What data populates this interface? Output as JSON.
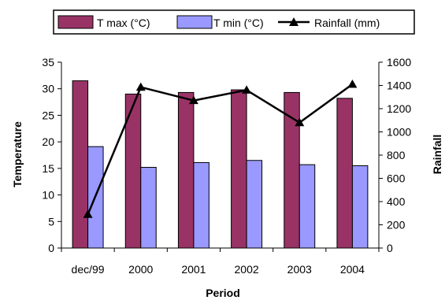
{
  "chart_data": {
    "type": "bar",
    "categories": [
      "dec/99",
      "2000",
      "2001",
      "2002",
      "2003",
      "2004"
    ],
    "series": [
      {
        "name": "T max (°C)",
        "type": "bar",
        "axis": "left",
        "color": "#993366",
        "values": [
          31.5,
          29,
          29.3,
          29.8,
          29.3,
          28.2
        ]
      },
      {
        "name": "T min (°C)",
        "type": "bar",
        "axis": "left",
        "color": "#9999ff",
        "values": [
          19.1,
          15.2,
          16.1,
          16.5,
          15.7,
          15.5
        ]
      },
      {
        "name": "Rainfall (mm)",
        "type": "line",
        "axis": "right",
        "color": "#000000",
        "marker": "triangle",
        "values": [
          290,
          1385,
          1270,
          1360,
          1080,
          1410
        ]
      }
    ],
    "xlabel": "Period",
    "ylabel": "Temperature",
    "y2label": "Rainfall",
    "ylim": [
      0,
      35
    ],
    "y2lim": [
      0,
      1600
    ],
    "yticks": [
      "0",
      "5",
      "10",
      "15",
      "20",
      "25",
      "30",
      "35"
    ],
    "y2ticks": [
      "0",
      "200",
      "400",
      "600",
      "800",
      "1000",
      "1200",
      "1400",
      "1600"
    ],
    "grid": false,
    "legend_position": "top"
  }
}
